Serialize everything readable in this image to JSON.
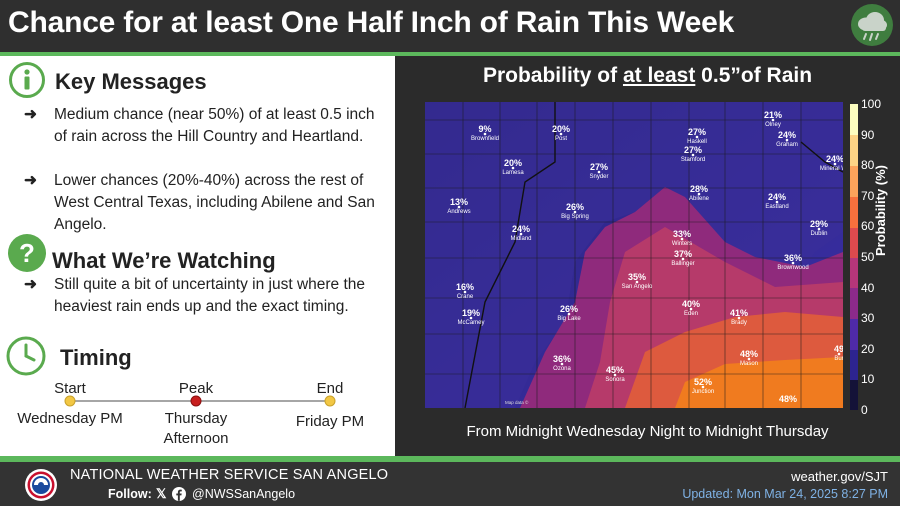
{
  "header": {
    "title": "Chance for at least One Half Inch of Rain This Week",
    "icon": "rain-cloud-icon"
  },
  "key_messages": {
    "title": "Key Messages",
    "bullets": [
      "Medium chance (near 50%) of at least 0.5 inch of rain across the Hill Country and Heartland.",
      "Lower chances (20%-40%) across the rest of West Central Texas, including Abilene and San Angelo."
    ]
  },
  "watching": {
    "title": "What We’re Watching",
    "bullets": [
      "Still quite a bit of uncertainty in just where the heaviest rain ends up and the exact timing."
    ]
  },
  "timing": {
    "title": "Timing",
    "start_label": "Start",
    "start_value": "Wednesday PM",
    "peak_label": "Peak",
    "peak_value_line1": "Thursday",
    "peak_value_line2": "Afternoon",
    "end_label": "End",
    "end_value": "Friday PM"
  },
  "map": {
    "title_pre": "Probability of ",
    "title_underlined": "at least",
    "title_post": " 0.5”of Rain",
    "caption": "From Midnight Wednesday Night to Midnight Thursday",
    "colorbar_title": "Probability (%)",
    "colorbar_ticks": [
      "100",
      "90",
      "80",
      "70",
      "60",
      "50",
      "40",
      "30",
      "20",
      "10",
      "0"
    ],
    "cities": [
      {
        "name": "Brownfield",
        "value": "9%"
      },
      {
        "name": "Post",
        "value": "20%"
      },
      {
        "name": "Haskell",
        "value": "27%"
      },
      {
        "name": "Olney",
        "value": "21%"
      },
      {
        "name": "Graham",
        "value": "24%"
      },
      {
        "name": "Lamesa",
        "value": "20%"
      },
      {
        "name": "Snyder",
        "value": "27%"
      },
      {
        "name": "Stamford",
        "value": "27%"
      },
      {
        "name": "Mineral We",
        "value": "24%"
      },
      {
        "name": "Abilene",
        "value": "28%"
      },
      {
        "name": "Andrews",
        "value": "13%"
      },
      {
        "name": "Big Spring",
        "value": "26%"
      },
      {
        "name": "Eastland",
        "value": "24%"
      },
      {
        "name": "Midland",
        "value": "24%"
      },
      {
        "name": "Winters",
        "value": "33%"
      },
      {
        "name": "Dublin",
        "value": "29%"
      },
      {
        "name": "Ballinger",
        "value": "37%"
      },
      {
        "name": "Brownwood",
        "value": "36%"
      },
      {
        "name": "San Angelo",
        "value": "35%"
      },
      {
        "name": "Crane",
        "value": "16%"
      },
      {
        "name": "Eden",
        "value": "40%"
      },
      {
        "name": "Brady",
        "value": "41%"
      },
      {
        "name": "McCamey",
        "value": "19%"
      },
      {
        "name": "Big Lake",
        "value": "26%"
      },
      {
        "name": "Ozona",
        "value": "36%"
      },
      {
        "name": "Mason",
        "value": "48%"
      },
      {
        "name": "Sonora",
        "value": "45%"
      },
      {
        "name": "Junction",
        "value": "52%"
      },
      {
        "name": "Bur",
        "value": "49"
      },
      {
        "name": "",
        "value": "48%"
      }
    ]
  },
  "footer": {
    "office": "NATIONAL WEATHER SERVICE SAN ANGELO",
    "follow": "Follow:",
    "handle": "@NWSSanAngelo",
    "website": "weather.gov/SJT",
    "updated": "Updated: Mon Mar 24, 2025 8:27 PM"
  }
}
